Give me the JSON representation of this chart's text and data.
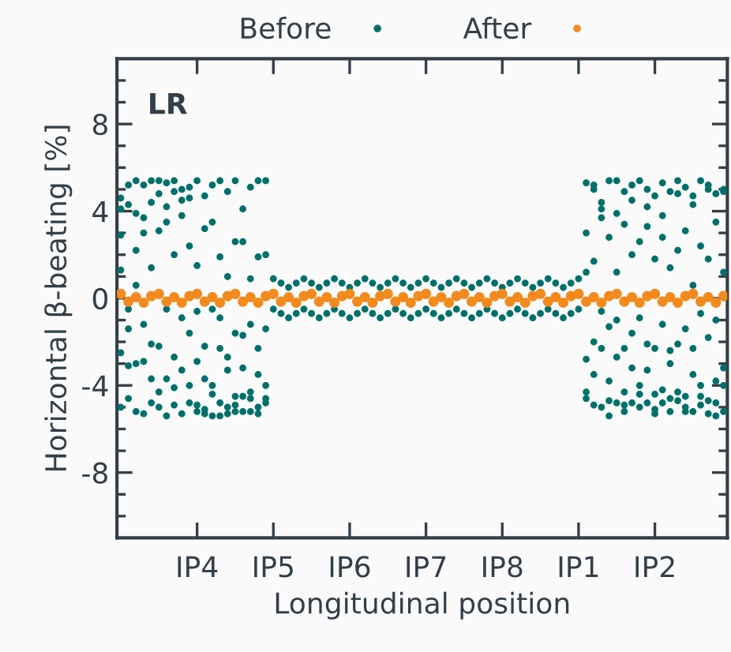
{
  "chart_data": {
    "type": "scatter",
    "xlabel": "Longitudinal position",
    "ylabel": "Horizontal β-beating [%]",
    "annotations": [
      "LR"
    ],
    "legend": "top",
    "grid": false,
    "marker": "circle",
    "categories": [
      null,
      null,
      null,
      null,
      null,
      null,
      null,
      null,
      null,
      null,
      "IP4",
      null,
      null,
      null,
      null,
      null,
      null,
      null,
      null,
      null,
      "IP5",
      null,
      null,
      null,
      null,
      null,
      null,
      null,
      null,
      null,
      "IP6",
      null,
      null,
      null,
      null,
      null,
      null,
      null,
      null,
      null,
      "IP7",
      null,
      null,
      null,
      null,
      null,
      null,
      null,
      null,
      null,
      "IP8",
      null,
      null,
      null,
      null,
      null,
      null,
      null,
      null,
      null,
      "IP1",
      null,
      null,
      null,
      null,
      null,
      null,
      null,
      null,
      null,
      "IP2",
      null,
      null,
      null,
      null,
      null,
      null,
      null,
      null,
      null
    ],
    "ylim": [
      -11,
      11
    ],
    "yticks": [
      -8,
      -4,
      0,
      4,
      8,
      {
        "value": -10,
        "label": null
      },
      {
        "value": -9,
        "label": null
      },
      {
        "value": -7,
        "label": null
      },
      {
        "value": -6,
        "label": null
      },
      {
        "value": -5,
        "label": null
      },
      {
        "value": -3,
        "label": null
      },
      {
        "value": -2,
        "label": null
      },
      {
        "value": -1,
        "label": null
      },
      {
        "value": 1,
        "label": null
      },
      {
        "value": 2,
        "label": null
      },
      {
        "value": 3,
        "label": null
      },
      {
        "value": 5,
        "label": null
      },
      {
        "value": 6,
        "label": null
      },
      {
        "value": 7,
        "label": null
      },
      {
        "value": 9,
        "label": null
      },
      {
        "value": 10,
        "label": null
      }
    ],
    "series": [
      {
        "name": "Before",
        "color": "#00706a",
        "values": [
          4.6,
          5.2,
          5.4,
          3.7,
          5.4,
          4.8,
          5.3,
          5.4,
          4.5,
          5.1,
          5.4,
          4.7,
          5.2,
          5.4,
          4.9,
          5.4,
          4.1,
          5.1,
          5.4,
          5.4,
          0.9,
          0.7,
          0.5,
          0.7,
          0.9,
          0.7,
          0.5,
          0.7,
          0.9,
          0.7,
          0.5,
          0.7,
          0.9,
          0.7,
          0.5,
          0.7,
          0.9,
          0.7,
          0.5,
          0.7,
          0.9,
          0.7,
          0.5,
          0.7,
          0.9,
          0.7,
          0.5,
          0.7,
          0.9,
          0.7,
          0.5,
          0.7,
          0.9,
          0.7,
          0.5,
          0.7,
          0.9,
          0.7,
          0.5,
          0.7,
          0.9,
          5.3,
          5.2,
          4.4,
          5.4,
          5.4,
          4.9,
          5.2,
          5.4,
          5.0,
          4.7,
          5.3,
          4.9,
          5.4,
          5.1,
          4.7,
          5.4,
          5.0,
          4.8,
          5.0
        ]
      },
      {
        "color": "#00706a",
        "values": [
          2.9,
          -0.5,
          2.2,
          3.0,
          1.4,
          3.1,
          3.5,
          2.0,
          3.8,
          2.4,
          1.5,
          3.2,
          3.5,
          1.9,
          1.0,
          2.6,
          2.6,
          0.9,
          1.9,
          2.0,
          -0.5,
          -0.7,
          -0.9,
          -0.7,
          -0.5,
          -0.7,
          -0.9,
          -0.7,
          -0.5,
          -0.7,
          -0.9,
          -0.7,
          -0.5,
          -0.7,
          -0.9,
          -0.7,
          -0.5,
          -0.7,
          -0.9,
          -0.7,
          -0.5,
          -0.7,
          -0.9,
          -0.7,
          -0.5,
          -0.7,
          -0.9,
          -0.7,
          -0.5,
          -0.7,
          -0.9,
          -0.7,
          -0.5,
          -0.7,
          -0.9,
          -0.7,
          -0.5,
          -0.7,
          -0.9,
          -0.7,
          -0.5,
          3.0,
          1.7,
          3.7,
          2.8,
          1.2,
          3.4,
          2.0,
          2.6,
          3.3,
          1.8,
          2.8,
          1.4,
          2.2,
          3.1,
          0.6,
          2.4,
          1.8,
          3.5,
          1.2
        ]
      },
      {
        "color": "#00706a",
        "values": [
          1.3,
          -1.4,
          0.6,
          -1.2,
          -2.1,
          -2.2,
          -0.5,
          -2.7,
          -0.9,
          -1.6,
          -0.6,
          -2.2,
          -0.5,
          -0.9,
          -2.7,
          -1.6,
          -1.7,
          -1.2,
          -2.3,
          -1.4,
          null,
          null,
          null,
          null,
          null,
          null,
          null,
          null,
          null,
          null,
          null,
          null,
          null,
          null,
          null,
          null,
          null,
          null,
          null,
          null,
          null,
          null,
          null,
          null,
          null,
          null,
          null,
          null,
          null,
          null,
          null,
          null,
          null,
          null,
          null,
          null,
          null,
          null,
          null,
          null,
          null,
          1.2,
          -2.0,
          -0.6,
          -1.3,
          -1.0,
          -2.3,
          -1.6,
          -0.9,
          -2.1,
          -2.3,
          -1.2,
          -2.4,
          -2.1,
          -1.4,
          -2.3,
          -0.7,
          -1.8,
          -1.0,
          -3.2
        ]
      },
      {
        "color": "#00706a",
        "values": [
          -2.5,
          -3.1,
          -3.0,
          -2.9,
          -3.7,
          -4.3,
          -3.7,
          -4.1,
          -3.3,
          -4.0,
          -2.9,
          -3.7,
          -4.0,
          -2.3,
          -3.3,
          -4.5,
          -3.2,
          -4.3,
          -3.5,
          -4.0,
          null,
          null,
          null,
          null,
          null,
          null,
          null,
          null,
          null,
          null,
          null,
          null,
          null,
          null,
          null,
          null,
          null,
          null,
          null,
          null,
          null,
          null,
          null,
          null,
          null,
          null,
          null,
          null,
          null,
          null,
          null,
          null,
          null,
          null,
          null,
          null,
          null,
          null,
          null,
          null,
          null,
          -2.8,
          -3.5,
          -2.3,
          -3.8,
          -2.7,
          -4.3,
          -3.2,
          -4.0,
          -3.3,
          -4.4,
          -4.2,
          -3.0,
          -4.3,
          -4.5,
          -3.5,
          -4.0,
          -4.7,
          -3.8,
          -4.0
        ]
      },
      {
        "color": "#00706a",
        "values": [
          -5.0,
          -4.6,
          -5.2,
          -5.3,
          -4.8,
          -5.0,
          -5.4,
          -4.9,
          -5.3,
          -4.8,
          -5.2,
          -5.3,
          -5.4,
          -5.4,
          -5.0,
          -5.2,
          -4.5,
          -5.2,
          -5.3,
          -4.8,
          null,
          null,
          null,
          null,
          null,
          null,
          null,
          null,
          null,
          null,
          null,
          null,
          null,
          null,
          null,
          null,
          null,
          null,
          null,
          null,
          null,
          null,
          null,
          null,
          null,
          null,
          null,
          null,
          null,
          null,
          null,
          null,
          null,
          null,
          null,
          null,
          null,
          null,
          null,
          null,
          null,
          -4.3,
          -4.9,
          -5.0,
          -5.4,
          -4.8,
          -5.2,
          -4.8,
          -5.0,
          -4.8,
          -5.3,
          -4.8,
          -5.2,
          -4.7,
          -5.2,
          -5.2,
          -4.9,
          -5.3,
          -5.4,
          -5.2
        ]
      },
      {
        "color": "#00706a",
        "values": [
          4.1,
          4.3,
          3.9,
          5.2,
          4.4,
          5.4,
          4.2,
          4.9,
          5.0,
          4.6,
          -4.9,
          -5.1,
          -4.4,
          -4.8,
          -5.3,
          -4.9,
          -5.2,
          -4.6,
          -5.0,
          -4.6,
          null,
          null,
          null,
          null,
          null,
          null,
          null,
          null,
          null,
          null,
          null,
          null,
          null,
          null,
          null,
          null,
          null,
          null,
          null,
          null,
          null,
          null,
          null,
          null,
          null,
          null,
          null,
          null,
          null,
          null,
          null,
          null,
          null,
          null,
          null,
          null,
          null,
          null,
          null,
          null,
          null,
          -4.6,
          5.0,
          4.1,
          -4.7,
          3.9,
          -4.9,
          4.5,
          -4.4,
          4.2,
          -5.1,
          3.8,
          -4.6,
          4.8,
          -5.0,
          4.3,
          -4.5,
          5.2,
          -4.8,
          4.9
        ]
      },
      {
        "name": "After",
        "color": "#f28a1e",
        "values": [
          0.2,
          -0.15,
          0.05,
          -0.2,
          0.1,
          0.2,
          -0.15,
          0.05,
          -0.2,
          0.1,
          0.2,
          -0.15,
          0.05,
          -0.2,
          0.1,
          0.2,
          -0.15,
          0.05,
          -0.2,
          0.1,
          0.2,
          -0.15,
          0.05,
          -0.2,
          0.1,
          0.2,
          -0.15,
          0.05,
          -0.2,
          0.1,
          0.2,
          -0.15,
          0.05,
          -0.2,
          0.1,
          0.2,
          -0.15,
          0.05,
          -0.2,
          0.1,
          0.2,
          -0.15,
          0.05,
          -0.2,
          0.1,
          0.2,
          -0.15,
          0.05,
          -0.2,
          0.1,
          0.2,
          -0.15,
          0.05,
          -0.2,
          0.1,
          0.2,
          -0.15,
          0.05,
          -0.2,
          0.1,
          0.2,
          -0.15,
          0.05,
          -0.2,
          0.1,
          0.2,
          -0.15,
          0.05,
          -0.2,
          0.1,
          0.2,
          -0.15,
          0.05,
          -0.2,
          0.1,
          0.2,
          -0.15,
          0.05,
          -0.2,
          0.1
        ]
      }
    ]
  }
}
